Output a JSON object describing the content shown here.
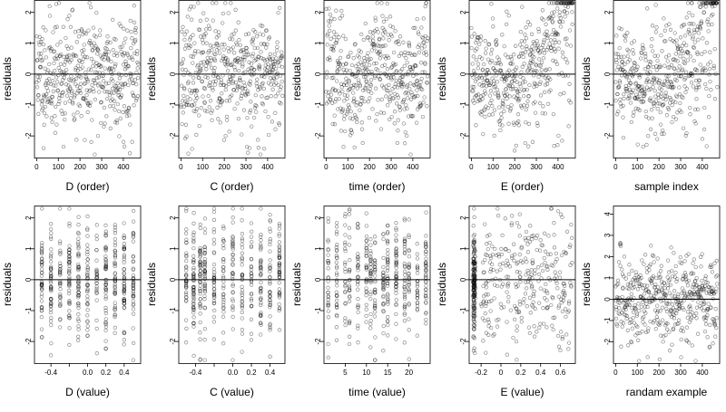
{
  "chart_data": [
    {
      "type": "scatter",
      "xlabel": "D (order)",
      "ylabel": "residuals",
      "xlim": [
        -10,
        480
      ],
      "ylim": [
        -2.7,
        2.4
      ],
      "xticks": [
        0,
        100,
        200,
        300,
        400
      ],
      "yticks": [
        -2,
        -1,
        0,
        1,
        2
      ],
      "hline": 0,
      "pattern": "order_noise",
      "seed": 11,
      "n": 470
    },
    {
      "type": "scatter",
      "xlabel": "C (order)",
      "ylabel": "residuals",
      "xlim": [
        -10,
        480
      ],
      "ylim": [
        -2.7,
        2.4
      ],
      "xticks": [
        0,
        100,
        200,
        300,
        400
      ],
      "yticks": [
        -2,
        -1,
        0,
        1,
        2
      ],
      "hline": 0,
      "pattern": "order_noise",
      "seed": 23,
      "n": 470
    },
    {
      "type": "scatter",
      "xlabel": "time (order)",
      "ylabel": "residuals",
      "xlim": [
        -10,
        480
      ],
      "ylim": [
        -2.7,
        2.4
      ],
      "xticks": [
        0,
        100,
        200,
        300,
        400
      ],
      "yticks": [
        -2,
        -1,
        0,
        1,
        2
      ],
      "hline": 0,
      "pattern": "order_wave",
      "seed": 37,
      "n": 470
    },
    {
      "type": "scatter",
      "xlabel": "E (order)",
      "ylabel": "residuals",
      "xlim": [
        -10,
        480
      ],
      "ylim": [
        -2.7,
        2.4
      ],
      "xticks": [
        0,
        100,
        200,
        300,
        400
      ],
      "yticks": [
        -2,
        -1,
        0,
        1,
        2
      ],
      "hline": 0,
      "pattern": "order_ushape",
      "seed": 41,
      "n": 470
    },
    {
      "type": "scatter",
      "xlabel": "sample index",
      "ylabel": "residuals",
      "xlim": [
        -10,
        480
      ],
      "ylim": [
        -2.7,
        2.4
      ],
      "xticks": [
        0,
        100,
        200,
        300,
        400
      ],
      "yticks": [
        -2,
        -1,
        0,
        1,
        2
      ],
      "hline": 0,
      "pattern": "order_ushape",
      "seed": 53,
      "n": 470
    },
    {
      "type": "scatter",
      "xlabel": "D (value)",
      "ylabel": "residuals",
      "xlim": [
        -0.58,
        0.58
      ],
      "ylim": [
        -2.7,
        2.4
      ],
      "xticks": [
        -0.4,
        -0.2,
        0.0,
        0.2,
        0.4
      ],
      "xticklabels": [
        "-0.4",
        "",
        "0.0",
        "0.2",
        "0.4"
      ],
      "yticks": [
        -2,
        -1,
        0,
        1,
        2
      ],
      "hline": 0,
      "pattern": "value_columns",
      "columns": [
        -0.5,
        -0.4,
        -0.3,
        -0.2,
        -0.1,
        0.0,
        0.1,
        0.2,
        0.3,
        0.4,
        0.5
      ],
      "seed": 61,
      "n": 470
    },
    {
      "type": "scatter",
      "xlabel": "C (value)",
      "ylabel": "residuals",
      "xlim": [
        -0.58,
        0.56
      ],
      "ylim": [
        -2.7,
        2.4
      ],
      "xticks": [
        -0.4,
        -0.2,
        0.0,
        0.2,
        0.4
      ],
      "xticklabels": [
        "-0.4",
        "",
        "0.0",
        "0.2",
        "0.4"
      ],
      "yticks": [
        -2,
        -1,
        0,
        1,
        2
      ],
      "hline": 0,
      "pattern": "value_columns",
      "columns": [
        -0.5,
        -0.42,
        -0.35,
        -0.3,
        -0.2,
        -0.1,
        0.0,
        0.1,
        0.2,
        0.3,
        0.4,
        0.5
      ],
      "seed": 67,
      "n": 470
    },
    {
      "type": "scatter",
      "xlabel": "time (value)",
      "ylabel": "residuals",
      "xlim": [
        0,
        25
      ],
      "ylim": [
        -2.7,
        2.4
      ],
      "xticks": [
        5,
        10,
        15,
        20
      ],
      "yticks": [
        -2,
        -1,
        0,
        1,
        2
      ],
      "hline": 0,
      "pattern": "value_columns",
      "columns": [
        1,
        3,
        5,
        6,
        8,
        10,
        11,
        12,
        14,
        15,
        17,
        19,
        20,
        22,
        24
      ],
      "seed": 71,
      "n": 470
    },
    {
      "type": "scatter",
      "xlabel": "E (value)",
      "ylabel": "residuals",
      "xlim": [
        -0.32,
        0.75
      ],
      "ylim": [
        -2.7,
        2.4
      ],
      "xticks": [
        -0.2,
        0.0,
        0.2,
        0.4,
        0.6
      ],
      "yticks": [
        -2,
        -1,
        0,
        1,
        2
      ],
      "hline": 0,
      "pattern": "value_skew",
      "seed": 79,
      "n": 470
    },
    {
      "type": "scatter",
      "xlabel": "randam example",
      "ylabel": "residuals",
      "xlim": [
        -10,
        480
      ],
      "ylim": [
        -3.0,
        4.4
      ],
      "xticks": [
        0,
        100,
        200,
        300,
        400
      ],
      "yticks": [
        -2,
        -1,
        0,
        1,
        2,
        3,
        4
      ],
      "hline": 0,
      "pattern": "random_normal",
      "seed": 83,
      "n": 470
    }
  ]
}
